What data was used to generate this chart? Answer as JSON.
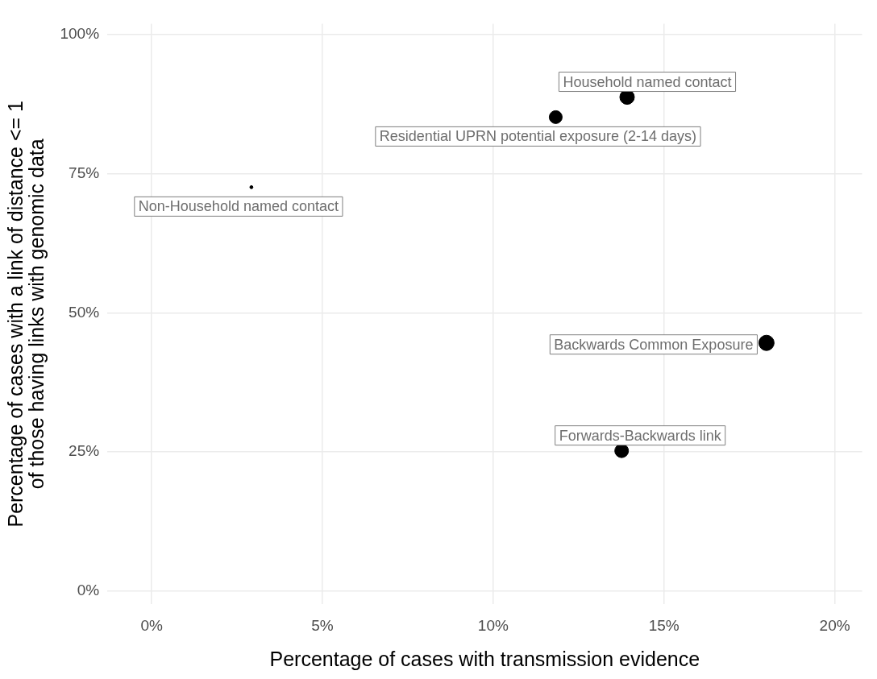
{
  "chart_data": {
    "type": "bubble",
    "xlabel": "Percentage of cases with transmission evidence",
    "ylabel": "Percentage of cases with a link of distance <= 1\nof those having links with genomic data",
    "x": [
      2.92,
      13.92,
      11.83,
      18.0,
      13.76
    ],
    "series": [
      {
        "color": "#000000",
        "values": [
          72.6,
          88.8,
          85.2,
          44.6,
          25.2
        ],
        "sizes": [
          0.04,
          0.9,
          0.71,
          1,
          0.8
        ]
      }
    ],
    "xlim": [
      -1.3,
      20.8
    ],
    "ylim": [
      -2.4,
      102
    ],
    "xticks": [
      {
        "value": 0,
        "label": "0%"
      },
      {
        "value": 5,
        "label": "5%"
      },
      {
        "value": 10,
        "label": "10%"
      },
      {
        "value": 15,
        "label": "15%"
      },
      {
        "value": 20,
        "label": "20%"
      }
    ],
    "yticks": [
      {
        "value": 0,
        "label": "0%"
      },
      {
        "value": 25,
        "label": "25%"
      },
      {
        "value": 50,
        "label": "50%"
      },
      {
        "value": 75,
        "label": "75%"
      },
      {
        "value": 100,
        "label": "100%"
      }
    ],
    "annotations": [
      {
        "text": "Non-Household named contact",
        "x": 2.92,
        "y": 72.6
      },
      {
        "text": "Household named contact",
        "x": 13.92,
        "y": 88.8
      },
      {
        "text": "Residential UPRN potential exposure (2-14 days)",
        "x": 11.83,
        "y": 85.2
      },
      {
        "text": "Backwards Common Exposure",
        "x": 18.0,
        "y": 44.6
      },
      {
        "text": "Forwards-Backwards link",
        "x": 13.76,
        "y": 25.2
      }
    ],
    "grid": true,
    "legend": false
  }
}
